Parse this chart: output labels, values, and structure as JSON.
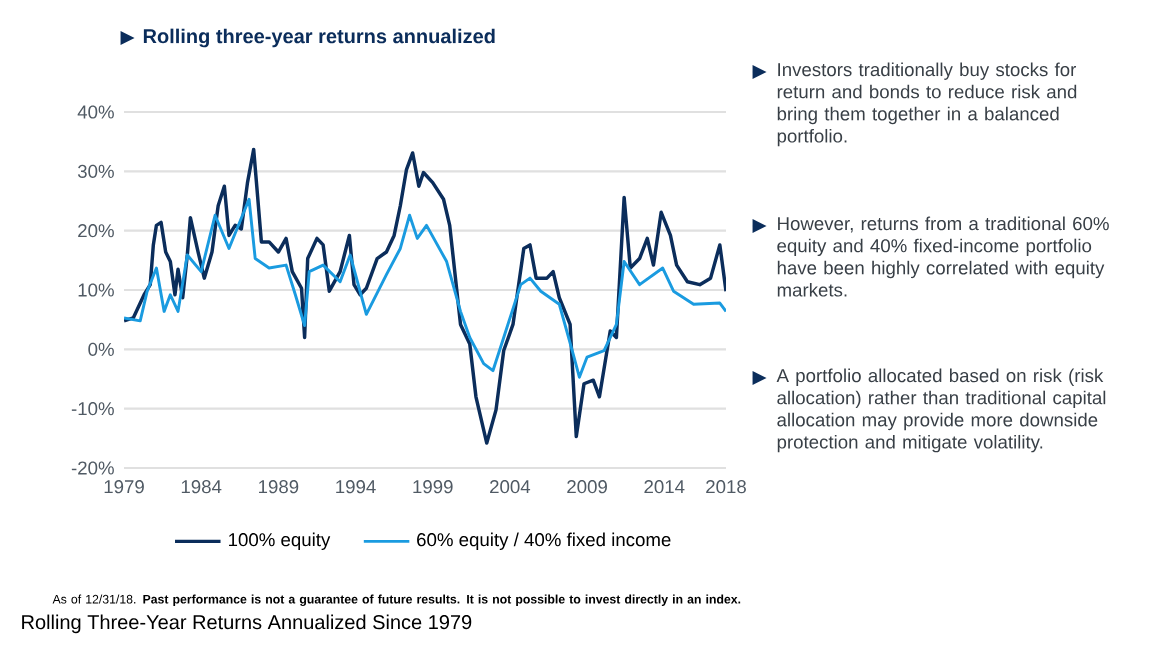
{
  "chart_data": {
    "type": "line",
    "title": "Rolling three-year returns annualized",
    "xlim": [
      1979,
      2018
    ],
    "xticks": [
      1979,
      1984,
      1989,
      1994,
      1999,
      2004,
      2009,
      2014,
      2018
    ],
    "ylim": [
      -20,
      40
    ],
    "yticks": [
      {
        "value": -20,
        "label": "-20%"
      },
      {
        "value": -10,
        "label": "-10%"
      },
      {
        "value": 0,
        "label": "0%"
      },
      {
        "value": 10,
        "label": "10%"
      },
      {
        "value": 20,
        "label": "20%"
      },
      {
        "value": 30,
        "label": "30%"
      },
      {
        "value": 40,
        "label": "40%"
      }
    ],
    "grid": "y",
    "legend": "bottom",
    "series": [
      {
        "name": "100% equity",
        "color": "#0b2d5b",
        "x": [
          1979.0,
          1979.6,
          1980.3,
          1980.7,
          1980.9,
          1981.1,
          1981.4,
          1981.7,
          1982.0,
          1982.3,
          1982.5,
          1982.8,
          1983.1,
          1983.3,
          1983.8,
          1984.2,
          1984.7,
          1985.1,
          1985.5,
          1985.8,
          1986.2,
          1986.6,
          1987.0,
          1987.4,
          1987.6,
          1987.9,
          1988.4,
          1989.0,
          1989.5,
          1989.9,
          1990.5,
          1990.7,
          1990.9,
          1991.5,
          1991.9,
          1992.3,
          1993.0,
          1993.6,
          1993.9,
          1994.3,
          1994.7,
          1995.4,
          1996.0,
          1996.5,
          1996.9,
          1997.3,
          1997.7,
          1998.1,
          1998.4,
          1999.0,
          1999.7,
          2000.1,
          2000.8,
          2001.4,
          2001.8,
          2002.5,
          2003.1,
          2003.6,
          2004.2,
          2004.9,
          2005.3,
          2005.7,
          2006.4,
          2006.8,
          2007.2,
          2007.9,
          2008.3,
          2008.8,
          2009.4,
          2009.8,
          2010.5,
          2010.9,
          2011.4,
          2011.8,
          2012.4,
          2012.9,
          2013.3,
          2013.8,
          2014.4,
          2014.8,
          2015.5,
          2016.3,
          2017.0,
          2017.6,
          2018.0
        ],
        "values": [
          4.8,
          5.3,
          9.2,
          10.9,
          17.6,
          20.9,
          21.4,
          16.4,
          14.8,
          9.2,
          13.5,
          8.7,
          15.9,
          22.2,
          16.4,
          12.0,
          16.4,
          24.2,
          27.5,
          19.2,
          20.9,
          20.3,
          28.1,
          33.7,
          27.5,
          18.1,
          18.1,
          16.4,
          18.7,
          13.1,
          10.3,
          2.0,
          15.3,
          18.7,
          17.6,
          9.8,
          13.1,
          19.2,
          10.9,
          9.2,
          10.3,
          15.3,
          16.4,
          19.2,
          24.2,
          30.3,
          33.1,
          27.5,
          29.8,
          28.1,
          25.3,
          20.9,
          4.2,
          0.9,
          -8.0,
          -15.8,
          -10.2,
          -0.2,
          4.2,
          17.0,
          17.6,
          12.0,
          12.0,
          13.1,
          8.7,
          4.2,
          -14.7,
          -5.8,
          -5.2,
          -8.0,
          3.1,
          2.0,
          25.6,
          13.7,
          15.3,
          18.7,
          14.2,
          23.1,
          19.2,
          14.2,
          11.4,
          10.9,
          12.0,
          17.6,
          9.8
        ]
      },
      {
        "name": "60% equity / 40% fixed income",
        "color": "#1a9be0",
        "x": [
          1979.0,
          1980.05,
          1980.5,
          1981.1,
          1981.6,
          1982.0,
          1982.5,
          1983.1,
          1984.0,
          1984.9,
          1985.8,
          1987.1,
          1987.5,
          1988.4,
          1989.5,
          1990.1,
          1990.7,
          1991.0,
          1991.9,
          1993.0,
          1993.65,
          1994.7,
          1996.0,
          1996.9,
          1997.5,
          1998.0,
          1998.6,
          1999.9,
          2000.8,
          2001.4,
          2002.3,
          2002.9,
          2003.6,
          2004.7,
          2005.3,
          2006.0,
          2007.2,
          2008.1,
          2008.5,
          2009.0,
          2010.1,
          2010.9,
          2011.4,
          2012.4,
          2013.9,
          2014.6,
          2015.9,
          2017.6,
          2018.0
        ],
        "values": [
          5.3,
          4.8,
          9.8,
          13.7,
          6.4,
          9.2,
          6.4,
          15.9,
          13.1,
          22.6,
          17.0,
          25.3,
          15.3,
          13.7,
          14.2,
          9.2,
          4.0,
          13.1,
          14.2,
          11.4,
          15.9,
          5.9,
          12.6,
          17.0,
          22.6,
          18.7,
          20.9,
          14.8,
          6.4,
          2.0,
          -2.4,
          -3.6,
          2.0,
          10.9,
          12.0,
          9.8,
          7.6,
          -0.8,
          -4.7,
          -1.3,
          -0.2,
          4.2,
          14.8,
          10.9,
          13.7,
          9.8,
          7.6,
          7.8,
          6.4
        ]
      }
    ],
    "annotations": [
      "Investors traditionally buy stocks for return and bonds to reduce risk and bring them together in a balanced portfolio.",
      "However, returns from a traditional 60% equity and 40% fixed-income portfolio have been highly correlated with equity markets.",
      "A portfolio allocated based on risk (risk allocation) rather than traditional capital allocation may provide more downside protection and mitigate volatility.",
      "As of 12/31/18. **Past performance is not a guarantee of future results. It is not possible to invest directly in an index.**",
      "Rolling Three-Year Returns Annualized Since 1979"
    ]
  }
}
